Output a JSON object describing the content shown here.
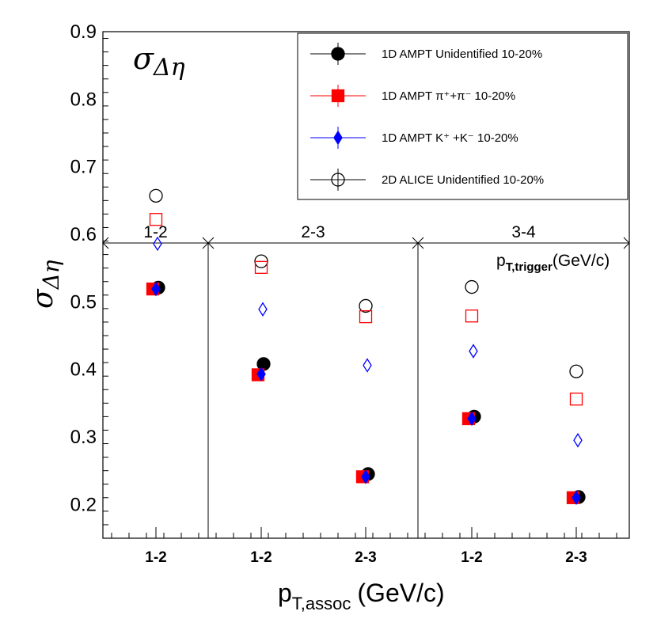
{
  "chart_data": {
    "type": "scatter",
    "title": "σ_Δη",
    "ylabel": "σ_Δη",
    "xlabel": "p_T,assoc (GeV/c)",
    "xlabel_main": "p",
    "xlabel_sub": "T,assoc",
    "xlabel_unit": "(GeV/c)",
    "ylim": [
      0.15,
      0.9
    ],
    "yticks": [
      "0.2",
      "0.3",
      "0.4",
      "0.5",
      "0.6",
      "0.7",
      "0.8",
      "0.9"
    ],
    "trigger_label_main": "p",
    "trigger_label_sub": "T,trigger",
    "trigger_label_unit": "(GeV/c)",
    "trigger_bins": [
      "1-2",
      "2-3",
      "3-4"
    ],
    "categories": [
      "1-2",
      "1-2",
      "2-3",
      "1-2",
      "2-3"
    ],
    "series": [
      {
        "name": "1D AMPT Unidentified 10-20%",
        "legend": "1D AMPT Unidentified 10-20%",
        "marker": "filled-circle",
        "color": "#000000",
        "values": [
          0.521,
          0.408,
          0.245,
          0.33,
          0.211
        ]
      },
      {
        "name": "1D AMPT π⁺+π⁻ 10-20%",
        "legend": "1D AMPT π⁺+π⁻ 10-20%",
        "marker": "filled-square",
        "color": "#ff0000",
        "values": [
          0.519,
          0.392,
          0.241,
          0.327,
          0.21
        ]
      },
      {
        "name": "1D AMPT K⁺ +K⁻ 10-20%",
        "legend": "1D AMPT K⁺ +K⁻ 10-20%",
        "marker": "filled-diamond",
        "color": "#0000ff",
        "values": [
          0.519,
          0.393,
          0.241,
          0.327,
          0.21
        ]
      },
      {
        "name": "2D ALICE Unidentified 10-20%",
        "legend": "2D ALICE Unidentified 10-20%",
        "marker": "open-circle",
        "color": "#000000",
        "values": [
          0.657,
          0.56,
          0.494,
          0.522,
          0.397
        ]
      },
      {
        "name": "1D AMPT π⁺+π⁻ 10-20% (open)",
        "legend": "",
        "marker": "open-square",
        "color": "#ff0000",
        "values": [
          0.622,
          0.551,
          0.478,
          0.479,
          0.356
        ]
      },
      {
        "name": "1D AMPT K⁺ +K⁻ 10-20% (open)",
        "legend": "",
        "marker": "open-diamond",
        "color": "#0000ff",
        "values": [
          0.586,
          0.489,
          0.406,
          0.427,
          0.295
        ]
      }
    ]
  }
}
